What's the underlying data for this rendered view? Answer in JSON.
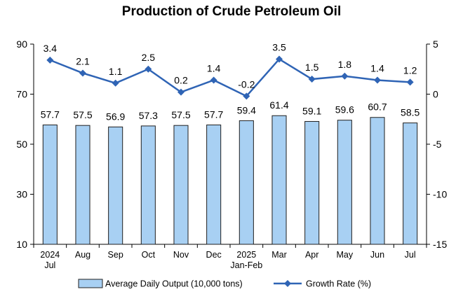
{
  "chart_data": {
    "type": "bar",
    "title": "Production of Crude Petroleum Oil",
    "categories": [
      [
        "2024",
        "Jul"
      ],
      [
        "Aug"
      ],
      [
        "Sep"
      ],
      [
        "Oct"
      ],
      [
        "Nov"
      ],
      [
        "Dec"
      ],
      [
        "2025",
        "Jan-Feb"
      ],
      [
        "Mar"
      ],
      [
        "Apr"
      ],
      [
        "May"
      ],
      [
        "Jun"
      ],
      [
        "Jul"
      ]
    ],
    "series": [
      {
        "name": "Average Daily Output (10,000 tons)",
        "type": "bar",
        "axis": "left",
        "values": [
          57.7,
          57.5,
          56.9,
          57.3,
          57.5,
          57.7,
          59.4,
          61.4,
          59.1,
          59.6,
          60.7,
          58.5
        ],
        "labels": [
          "57.7",
          "57.5",
          "56.9",
          "57.3",
          "57.5",
          "57.7",
          "59.4",
          "61.4",
          "59.1",
          "59.6",
          "60.7",
          "58.5"
        ]
      },
      {
        "name": "Growth Rate (%)",
        "type": "line",
        "axis": "right",
        "values": [
          3.4,
          2.1,
          1.1,
          2.5,
          0.2,
          1.4,
          -0.2,
          3.5,
          1.5,
          1.8,
          1.4,
          1.2
        ],
        "labels": [
          "3.4",
          "2.1",
          "1.1",
          "2.5",
          "0.2",
          "1.4",
          "-0.2",
          "3.5",
          "1.5",
          "1.8",
          "1.4",
          "1.2"
        ]
      }
    ],
    "y_left": {
      "min": 10,
      "max": 90,
      "ticks": [
        "10",
        "30",
        "50",
        "70",
        "90"
      ]
    },
    "y_right": {
      "min": -15,
      "max": 5,
      "ticks": [
        "-15",
        "-10",
        "-5",
        "0",
        "5"
      ]
    },
    "grid": false,
    "legend_position": "bottom",
    "colors": {
      "bar_fill": "#a8d0f3",
      "bar_stroke": "#1f1f1f",
      "line": "#2f64b5",
      "axis": "#000000"
    }
  }
}
